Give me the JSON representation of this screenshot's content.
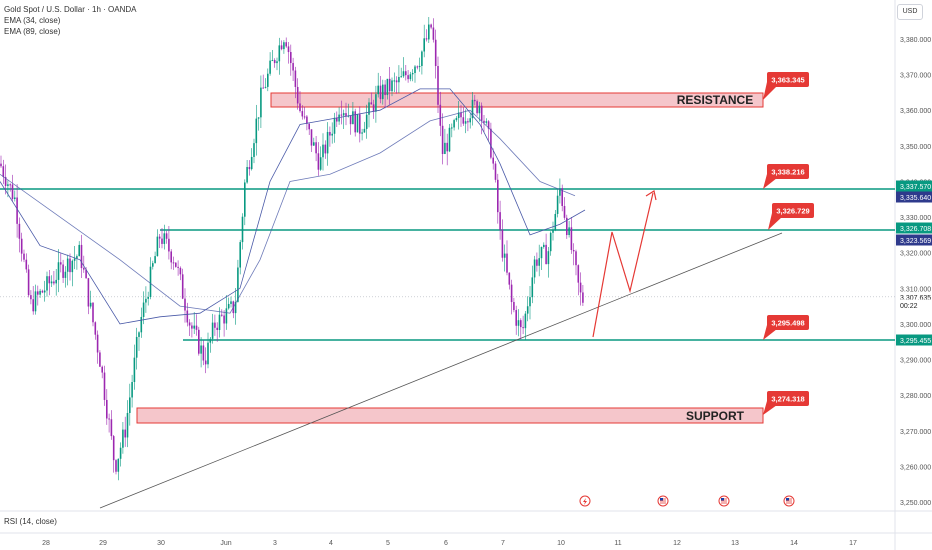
{
  "legend": {
    "symbol": "Gold Spot / U.S. Dollar · 1h · OANDA",
    "ema34": "EMA (34, close)",
    "ema89": "EMA (89, close)"
  },
  "rsi_label": "RSI (14, close)",
  "currency_button": "USD",
  "price_axis": {
    "ticks": [
      "3,380.000",
      "3,370.000",
      "3,360.000",
      "3,350.000",
      "3,340.000",
      "3,330.000",
      "3,320.000",
      "3,310.000",
      "3,300.000",
      "3,290.000",
      "3,280.000",
      "3,270.000",
      "3,260.000",
      "3,250.000"
    ],
    "tick_values": [
      3380,
      3370,
      3360,
      3350,
      3340,
      3330,
      3320,
      3310,
      3300,
      3290,
      3280,
      3270,
      3260,
      3250
    ]
  },
  "time_axis": {
    "labels": [
      "28",
      "29",
      "30",
      "Jun",
      "3",
      "4",
      "5",
      "6",
      "7",
      "10",
      "11",
      "12",
      "13",
      "14",
      "17"
    ]
  },
  "price_tags": [
    {
      "label": "3,337.570",
      "color": "#089981"
    },
    {
      "label": "3,335.640",
      "color": "#2e3a8c"
    },
    {
      "label": "3,326.708",
      "color": "#089981"
    },
    {
      "label": "3,323.569",
      "color": "#2e3a8c"
    },
    {
      "label": "3,307.635",
      "color": "#d1d4dc"
    },
    {
      "label": "00:22",
      "color": "#d1d4dc"
    },
    {
      "label": "3,295.455",
      "color": "#089981"
    }
  ],
  "callouts": [
    {
      "label": "3,363.345",
      "value": 3363.345
    },
    {
      "label": "3,338.216",
      "value": 3338.216
    },
    {
      "label": "3,326.729",
      "value": 3326.729
    },
    {
      "label": "3,295.498",
      "value": 3295.498
    },
    {
      "label": "3,274.318",
      "value": 3274.318
    }
  ],
  "zones": {
    "resistance": {
      "label": "RESISTANCE",
      "color": "#f5c6cb",
      "border": "#e53935"
    },
    "support": {
      "label": "SUPPORT",
      "color": "#f5c6cb",
      "border": "#e53935"
    }
  },
  "colors": {
    "bull": "#089981",
    "bear": "#9c27b0",
    "line_green": "#089981",
    "ema": "#4a5aa8",
    "callout": "#e53935",
    "projection": "#e53935"
  },
  "events": [
    {
      "icon": "lightning-icon"
    },
    {
      "icon": "flag-us-icon"
    },
    {
      "icon": "flag-us-icon"
    },
    {
      "icon": "flag-us-icon"
    }
  ]
}
